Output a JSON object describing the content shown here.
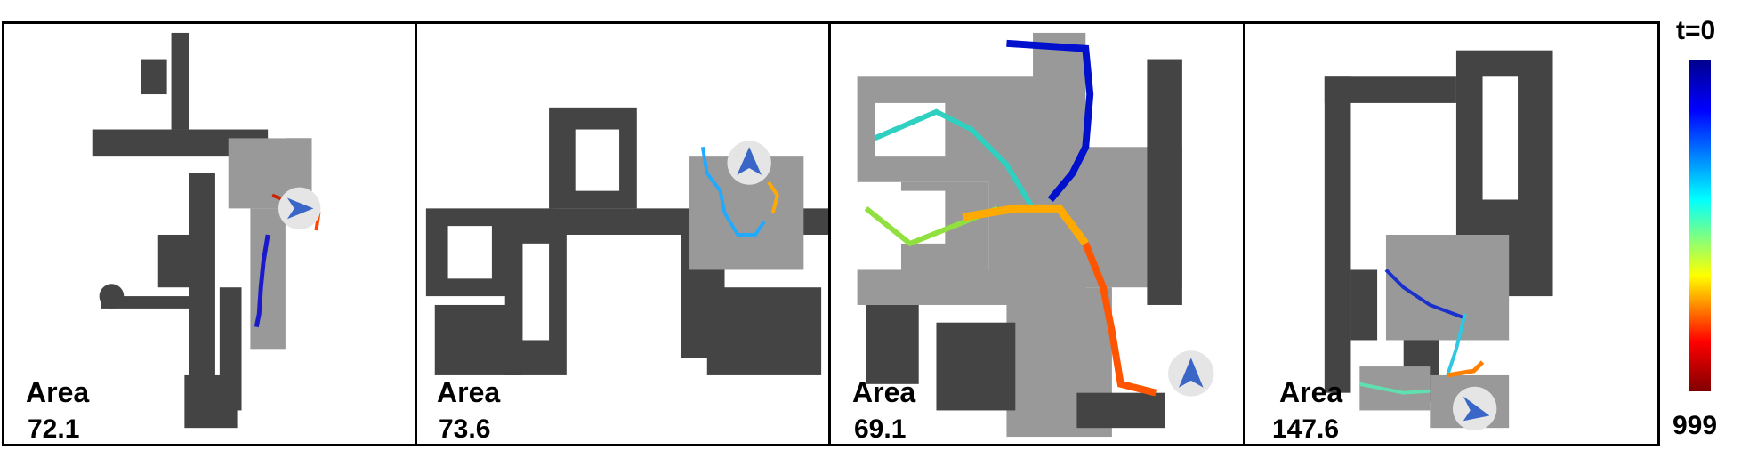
{
  "panels": [
    {
      "area_label": "Area",
      "area_value": "72.1"
    },
    {
      "area_label": "Area",
      "area_value": "73.6"
    },
    {
      "area_label": "Area",
      "area_value": "69.1"
    },
    {
      "area_label": "Area",
      "area_value": "147.6"
    }
  ],
  "colorbar": {
    "top_label": "t=0",
    "bottom_label": "999",
    "colors": [
      "#00008f",
      "#0000ff",
      "#00ffff",
      "#ffff00",
      "#ff0000",
      "#800000"
    ]
  },
  "colors": {
    "wall": "#444444",
    "explored": "#999999",
    "agent": "#3a66c8",
    "agent_halo": "#e5e5e5"
  }
}
